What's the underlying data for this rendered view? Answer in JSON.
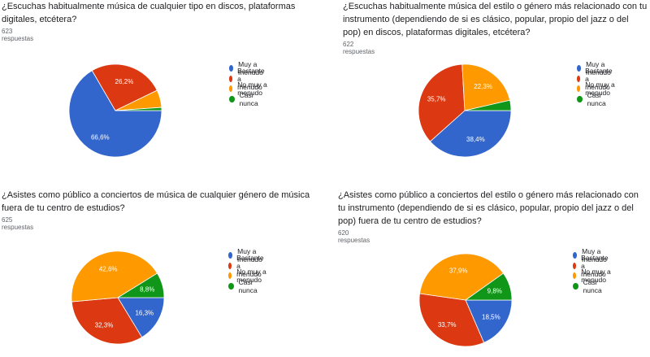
{
  "colors": {
    "muy_a_menudo": "#3366cc",
    "bastante_a_menudo": "#dc3912",
    "no_muy_a_menudo": "#ff9900",
    "casi_nunca": "#109618"
  },
  "legend_labels": [
    "Muy a menudo",
    "Bastante a menudo",
    "No muy a menudo",
    "Casi nunca"
  ],
  "chart_data": [
    {
      "type": "pie",
      "title": "¿Escuchas habitualmente música de cualquier tipo en discos, plataformas digitales, etcétera?",
      "responses": "623 respuestas",
      "legend_position": "right",
      "categories": [
        "Muy a menudo",
        "Bastante a menudo",
        "No muy a menudo",
        "Casi nunca"
      ],
      "values": [
        66.6,
        26.2,
        6.1,
        1.1
      ],
      "labels": [
        "66,6%",
        "26,2%",
        "",
        ""
      ]
    },
    {
      "type": "pie",
      "title": "¿Escuchas habitualmente música del estilo o género más relacionado con tu instrumento (dependiendo de si es clásico, popular, propio del jazz o del pop) en discos, plataformas digitales, etcétera?",
      "responses": "622 respuestas",
      "legend_position": "right",
      "categories": [
        "Muy a menudo",
        "Bastante a menudo",
        "No muy a menudo",
        "Casi nunca"
      ],
      "values": [
        38.4,
        35.7,
        22.3,
        3.6
      ],
      "labels": [
        "38,4%",
        "35,7%",
        "22,3%",
        ""
      ]
    },
    {
      "type": "pie",
      "title": "¿Asistes como público a conciertos de música de cualquier género de música fuera de tu centro de estudios?",
      "responses": "625 respuestas",
      "legend_position": "right",
      "categories": [
        "Muy a menudo",
        "Bastante a menudo",
        "No muy a menudo",
        "Casi nunca"
      ],
      "values": [
        16.3,
        32.3,
        42.6,
        8.8
      ],
      "labels": [
        "16,3%",
        "32,3%",
        "42,6%",
        "8,8%"
      ]
    },
    {
      "type": "pie",
      "title": "¿Asistes como público a conciertos del estilo o género más relacionado con tu instrumento (dependiendo de si es clásico, popular, propio del jazz o del pop) fuera de tu centro de estudios?",
      "responses": "620 respuestas",
      "legend_position": "right",
      "categories": [
        "Muy a menudo",
        "Bastante a menudo",
        "No muy a menudo",
        "Casi nunca"
      ],
      "values": [
        18.5,
        33.7,
        37.9,
        9.8
      ],
      "labels": [
        "18,5%",
        "33,7%",
        "37,9%",
        "9,8%"
      ]
    }
  ]
}
